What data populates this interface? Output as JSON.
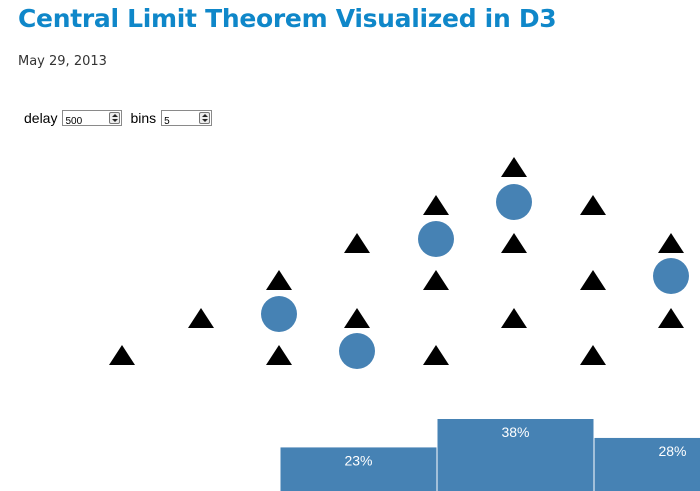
{
  "page": {
    "title": "Central Limit Theorem Visualized in D3",
    "date": "May 29, 2013"
  },
  "controls": {
    "delay_label": "delay",
    "delay_value": "500",
    "bins_label": "bins",
    "bins_value": "5"
  },
  "colors": {
    "title": "#0f87c9",
    "ball": "#4682b4",
    "peg": "#000000",
    "bar": "#4682b4",
    "bar_label": "#ffffff"
  },
  "chart_data": {
    "type": "bar",
    "categories": [
      "bin-1",
      "bin-2",
      "bin-3",
      "bin-4",
      "bin-5"
    ],
    "values": [
      null,
      23,
      38,
      28,
      null
    ],
    "value_labels": [
      "",
      "23%",
      "38%",
      "28%",
      ""
    ],
    "unit": "%",
    "ylim": [
      0,
      40
    ],
    "grid": false
  }
}
